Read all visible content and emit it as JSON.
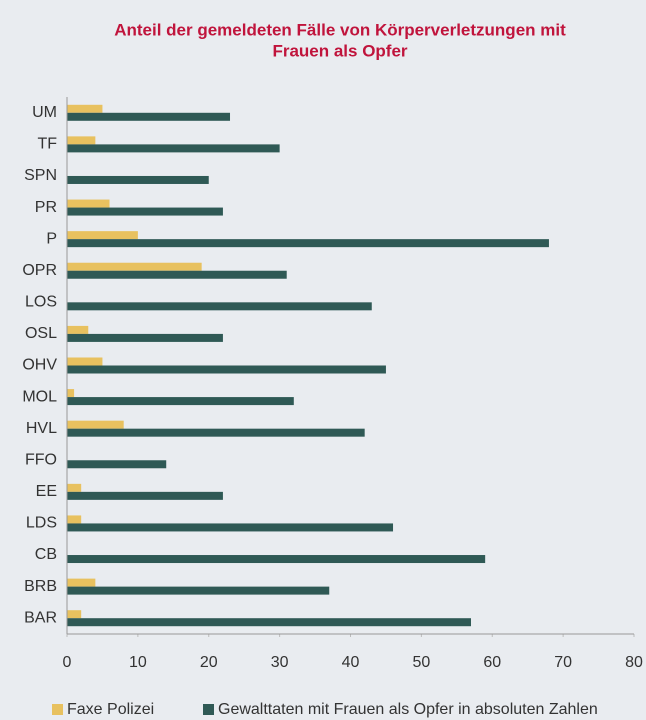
{
  "chart_data": {
    "type": "hbar",
    "title": [
      "Anteil der gemeldeten Fälle von Körperverletzungen mit",
      "Frauen als Opfer"
    ],
    "categories": [
      "UM",
      "TF",
      "SPN",
      "PR",
      "P",
      "OPR",
      "LOS",
      "OSL",
      "OHV",
      "MOL",
      "HVL",
      "FFO",
      "EE",
      "LDS",
      "CB",
      "BRB",
      "BAR"
    ],
    "series": [
      {
        "name": "Faxe Polizei",
        "color": "#e8c15f",
        "values": [
          5,
          4,
          0,
          6,
          10,
          19,
          0,
          3,
          5,
          1,
          8,
          0,
          2,
          2,
          0,
          4,
          2
        ]
      },
      {
        "name": "Gewalttaten mit Frauen als Opfer in absoluten Zahlen",
        "color": "#2f5955",
        "values": [
          23,
          30,
          20,
          22,
          68,
          31,
          43,
          22,
          45,
          32,
          42,
          14,
          22,
          46,
          59,
          37,
          57
        ]
      }
    ],
    "xlim": [
      0,
      80
    ],
    "xticks": [
      0,
      10,
      20,
      30,
      40,
      50,
      60,
      70,
      80
    ],
    "legend": "bottom"
  }
}
